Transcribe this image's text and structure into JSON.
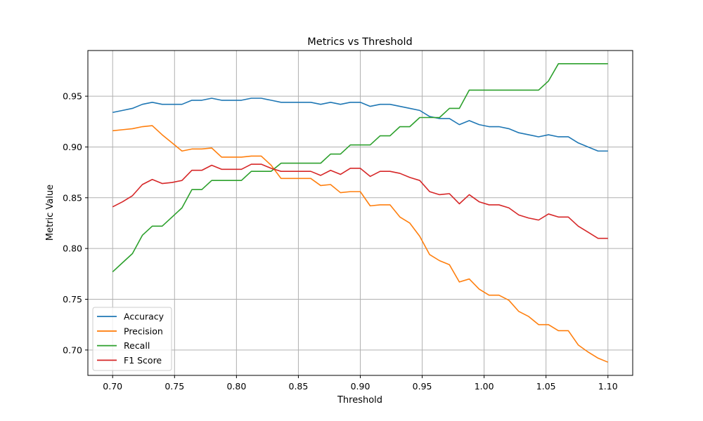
{
  "chart_data": {
    "type": "line",
    "title": "Metrics vs Threshold",
    "xlabel": "Threshold",
    "ylabel": "Metric Value",
    "xlim": [
      0.68,
      1.12
    ],
    "ylim": [
      0.675,
      0.995
    ],
    "xticks": [
      0.7,
      0.75,
      0.8,
      0.85,
      0.9,
      0.95,
      1.0,
      1.05,
      1.1
    ],
    "xtick_labels": [
      "0.70",
      "0.75",
      "0.80",
      "0.85",
      "0.90",
      "0.95",
      "1.00",
      "1.05",
      "1.10"
    ],
    "yticks": [
      0.7,
      0.75,
      0.8,
      0.85,
      0.9,
      0.95
    ],
    "ytick_labels": [
      "0.70",
      "0.75",
      "0.80",
      "0.85",
      "0.90",
      "0.95"
    ],
    "grid": true,
    "legend_position": "lower-left",
    "x": [
      0.7,
      0.708,
      0.716,
      0.724,
      0.732,
      0.74,
      0.748,
      0.756,
      0.764,
      0.772,
      0.78,
      0.788,
      0.796,
      0.804,
      0.812,
      0.82,
      0.828,
      0.836,
      0.844,
      0.852,
      0.86,
      0.868,
      0.876,
      0.884,
      0.892,
      0.9,
      0.908,
      0.916,
      0.924,
      0.932,
      0.94,
      0.948,
      0.956,
      0.964,
      0.972,
      0.98,
      0.988,
      0.996,
      1.004,
      1.012,
      1.02,
      1.028,
      1.036,
      1.044,
      1.052,
      1.06,
      1.068,
      1.076,
      1.084,
      1.092,
      1.1
    ],
    "series": [
      {
        "name": "Accuracy",
        "color": "#1f77b4",
        "values": [
          0.934,
          0.936,
          0.938,
          0.942,
          0.944,
          0.942,
          0.942,
          0.942,
          0.946,
          0.946,
          0.948,
          0.946,
          0.946,
          0.946,
          0.948,
          0.948,
          0.946,
          0.944,
          0.944,
          0.944,
          0.944,
          0.942,
          0.944,
          0.942,
          0.944,
          0.944,
          0.94,
          0.942,
          0.942,
          0.94,
          0.938,
          0.936,
          0.93,
          0.928,
          0.928,
          0.922,
          0.926,
          0.922,
          0.92,
          0.92,
          0.918,
          0.914,
          0.912,
          0.91,
          0.912,
          0.91,
          0.91,
          0.904,
          0.9,
          0.896,
          0.896
        ]
      },
      {
        "name": "Precision",
        "color": "#ff7f0e",
        "values": [
          0.916,
          0.917,
          0.918,
          0.92,
          0.921,
          0.912,
          0.904,
          0.896,
          0.898,
          0.898,
          0.899,
          0.89,
          0.89,
          0.89,
          0.891,
          0.891,
          0.882,
          0.869,
          0.869,
          0.869,
          0.869,
          0.862,
          0.863,
          0.855,
          0.856,
          0.856,
          0.842,
          0.843,
          0.843,
          0.831,
          0.825,
          0.812,
          0.794,
          0.788,
          0.784,
          0.767,
          0.77,
          0.76,
          0.754,
          0.754,
          0.749,
          0.738,
          0.733,
          0.725,
          0.725,
          0.719,
          0.719,
          0.705,
          0.698,
          0.692,
          0.688
        ]
      },
      {
        "name": "Recall",
        "color": "#2ca02c",
        "values": [
          0.777,
          0.786,
          0.795,
          0.813,
          0.822,
          0.822,
          0.831,
          0.84,
          0.858,
          0.858,
          0.867,
          0.867,
          0.867,
          0.867,
          0.876,
          0.876,
          0.876,
          0.884,
          0.884,
          0.884,
          0.884,
          0.884,
          0.893,
          0.893,
          0.902,
          0.902,
          0.902,
          0.911,
          0.911,
          0.92,
          0.92,
          0.929,
          0.929,
          0.929,
          0.938,
          0.938,
          0.956,
          0.956,
          0.956,
          0.956,
          0.956,
          0.956,
          0.956,
          0.956,
          0.965,
          0.982,
          0.982,
          0.982,
          0.982,
          0.982,
          0.982
        ]
      },
      {
        "name": "F1 Score",
        "color": "#d62728",
        "values": [
          0.841,
          0.846,
          0.852,
          0.863,
          0.868,
          0.864,
          0.865,
          0.867,
          0.877,
          0.877,
          0.882,
          0.878,
          0.878,
          0.878,
          0.883,
          0.883,
          0.879,
          0.876,
          0.876,
          0.876,
          0.876,
          0.872,
          0.877,
          0.873,
          0.879,
          0.879,
          0.871,
          0.876,
          0.876,
          0.874,
          0.87,
          0.867,
          0.856,
          0.853,
          0.854,
          0.844,
          0.853,
          0.846,
          0.843,
          0.843,
          0.84,
          0.833,
          0.83,
          0.828,
          0.834,
          0.831,
          0.831,
          0.822,
          0.816,
          0.81,
          0.81
        ]
      }
    ]
  }
}
